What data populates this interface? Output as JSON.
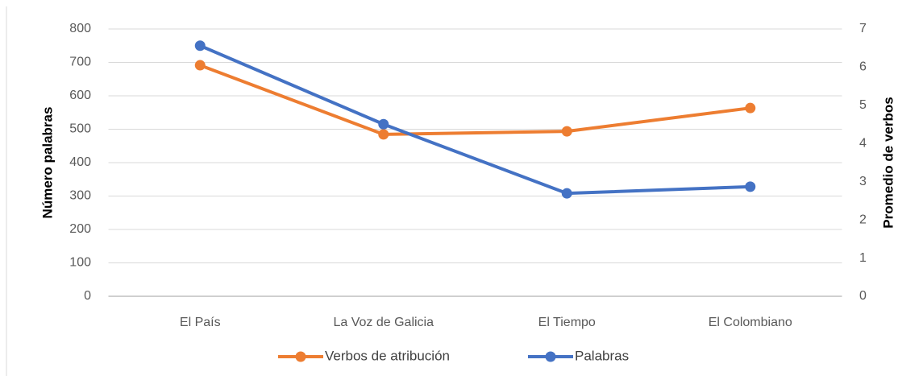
{
  "chart_data": {
    "type": "line",
    "categories": [
      "El País",
      "La Voz de Galicia",
      "El Tiempo",
      "El Colombiano"
    ],
    "y_label": "Número  palabras",
    "y2_label": "Promedio de verbos",
    "ylim": [
      0,
      800
    ],
    "yticks": [
      0,
      100,
      200,
      300,
      400,
      500,
      600,
      700,
      800
    ],
    "y2lim": [
      0,
      7
    ],
    "y2ticks": [
      0,
      1,
      2,
      3,
      4,
      5,
      6,
      7
    ],
    "grid": true,
    "legend": "bottom",
    "series": [
      {
        "name": "Verbos de atribución",
        "color": "#ed7d31",
        "axis": "y2",
        "values": [
          6.05,
          4.24,
          4.32,
          4.93
        ]
      },
      {
        "name": "Palabras",
        "color": "#4472c4",
        "values": [
          750,
          515,
          308,
          328
        ]
      }
    ]
  }
}
